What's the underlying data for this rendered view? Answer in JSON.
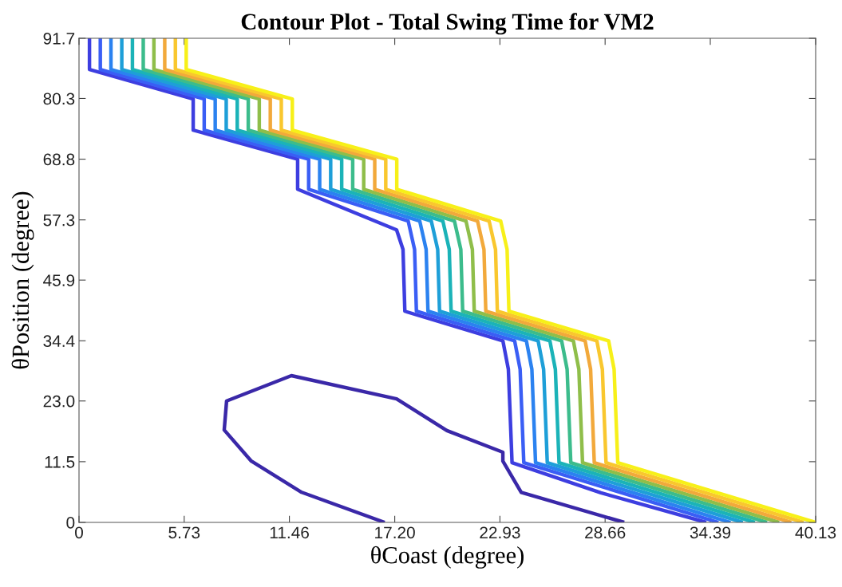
{
  "chart_data": {
    "type": "line",
    "title": "Contour Plot - Total Swing Time for VM2",
    "xlabel": "θCoast (degree)",
    "ylabel": "θPosition (degree)",
    "xlim": [
      0,
      40.13
    ],
    "ylim": [
      0,
      91.7
    ],
    "xticks": [
      0,
      5.73,
      11.46,
      {
        "value": 17.2,
        "label": "17.20"
      },
      22.93,
      28.66,
      34.39,
      40.13
    ],
    "yticks": [
      0,
      11.5,
      {
        "value": 23,
        "label": "23.0"
      },
      34.4,
      45.9,
      57.3,
      68.8,
      80.3,
      91.7
    ],
    "grid": false,
    "marker": "none",
    "line_style": "solid",
    "series": [
      {
        "color": "#3a28a8",
        "x": [
          16.65,
          12.13,
          9.39,
          7.91,
          8.04,
          11.57,
          17.3,
          20.04,
          23.09,
          23.09,
          24.09,
          29.7
        ],
        "values": [
          0,
          5.7,
          11.6,
          17.5,
          23.0,
          27.8,
          23.4,
          17.4,
          13.3,
          11.6,
          5.7,
          0
        ]
      },
      {
        "color": "#3d3ee0",
        "x": [
          0.57,
          0.57,
          6.22,
          6.22,
          11.91,
          11.91,
          17.3,
          17.65,
          17.75,
          23.09,
          23.39,
          23.59,
          28.43,
          34.17
        ],
        "values": [
          91.7,
          85.8,
          80.2,
          74.3,
          68.8,
          63.1,
          55.4,
          51.7,
          40.0,
          34.4,
          29.0,
          11.3,
          5.6,
          0
        ]
      },
      {
        "color": "#3a5ef5",
        "x": [
          1.16,
          1.16,
          6.82,
          6.82,
          12.51,
          12.51,
          17.93,
          18.28,
          18.38,
          23.73,
          24.03,
          24.23,
          34.83
        ],
        "values": [
          91.7,
          85.8,
          80.2,
          74.3,
          68.8,
          63.1,
          57.1,
          51.7,
          40.0,
          34.4,
          29.0,
          11.3,
          0
        ]
      },
      {
        "color": "#2b82f0",
        "x": [
          1.74,
          1.74,
          7.42,
          7.42,
          13.11,
          13.11,
          18.56,
          18.91,
          19.01,
          24.37,
          24.67,
          24.87,
          35.49
        ],
        "values": [
          91.7,
          85.8,
          80.2,
          74.3,
          68.8,
          63.1,
          57.1,
          51.7,
          40.0,
          34.4,
          29.0,
          11.3,
          0
        ]
      },
      {
        "color": "#1e9fd8",
        "x": [
          2.33,
          2.33,
          8.02,
          8.02,
          13.71,
          13.71,
          19.19,
          19.54,
          19.64,
          25.01,
          25.31,
          25.51,
          36.16
        ],
        "values": [
          91.7,
          85.8,
          80.2,
          74.3,
          68.8,
          63.1,
          57.1,
          51.7,
          40.0,
          34.4,
          29.0,
          11.3,
          0
        ]
      },
      {
        "color": "#1bb3b8",
        "x": [
          2.91,
          2.91,
          8.62,
          8.62,
          14.31,
          14.31,
          19.82,
          20.17,
          20.27,
          25.65,
          25.95,
          26.15,
          36.82
        ],
        "values": [
          91.7,
          85.8,
          80.2,
          74.3,
          68.8,
          63.1,
          57.1,
          51.7,
          40.0,
          34.4,
          29.0,
          11.3,
          0
        ]
      },
      {
        "color": "#3cbc8c",
        "x": [
          3.5,
          3.5,
          9.22,
          9.22,
          14.91,
          14.91,
          20.45,
          20.8,
          20.9,
          26.29,
          26.59,
          26.79,
          37.48
        ],
        "values": [
          91.7,
          85.8,
          80.2,
          74.3,
          68.8,
          63.1,
          57.1,
          51.7,
          40.0,
          34.4,
          29.0,
          11.3,
          0
        ]
      },
      {
        "color": "#8fbe4a",
        "x": [
          4.08,
          4.08,
          9.82,
          9.82,
          15.51,
          15.51,
          21.08,
          21.43,
          21.53,
          26.93,
          27.23,
          27.43,
          38.14
        ],
        "values": [
          91.7,
          85.8,
          80.2,
          74.3,
          68.8,
          63.1,
          57.1,
          51.7,
          40.0,
          34.4,
          29.0,
          11.3,
          0
        ]
      },
      {
        "color": "#f2a93b",
        "x": [
          4.67,
          4.67,
          10.42,
          10.42,
          16.11,
          16.11,
          21.71,
          22.06,
          22.16,
          27.57,
          27.87,
          28.07,
          38.8
        ],
        "values": [
          91.7,
          85.8,
          80.2,
          74.3,
          68.8,
          63.1,
          57.1,
          51.7,
          40.0,
          34.4,
          29.0,
          11.3,
          0
        ]
      },
      {
        "color": "#f9c72e",
        "x": [
          5.25,
          5.25,
          11.02,
          11.02,
          16.71,
          16.71,
          22.34,
          22.69,
          22.79,
          28.21,
          28.51,
          28.71,
          39.47
        ],
        "values": [
          91.7,
          85.8,
          80.2,
          74.3,
          68.8,
          63.1,
          57.1,
          51.7,
          40.0,
          34.4,
          29.0,
          11.3,
          0
        ]
      },
      {
        "color": "#f7f019",
        "x": [
          5.84,
          5.84,
          11.62,
          11.62,
          17.31,
          17.31,
          22.97,
          23.32,
          23.42,
          28.85,
          29.15,
          29.35,
          40.13
        ],
        "values": [
          91.7,
          85.8,
          80.2,
          74.3,
          68.8,
          63.1,
          57.1,
          51.7,
          40.0,
          34.4,
          29.0,
          11.3,
          0
        ]
      }
    ]
  }
}
